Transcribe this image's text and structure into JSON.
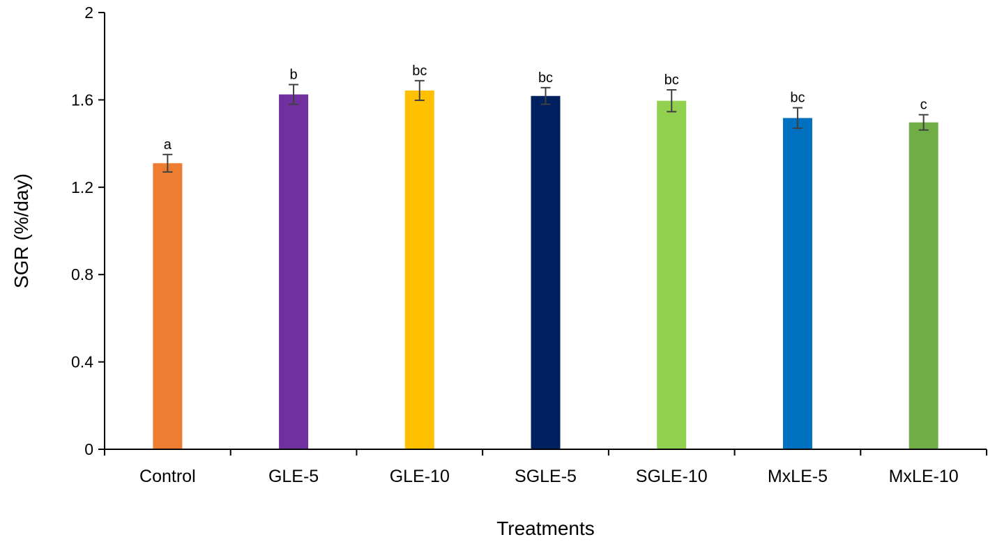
{
  "chart_data": {
    "type": "bar",
    "title": "",
    "xlabel": "Treatments",
    "ylabel": "SGR (%/day)",
    "ylim": [
      0,
      2
    ],
    "yticks": [
      "0",
      "0.4",
      "0.8",
      "1.2",
      "1.6",
      "2"
    ],
    "yticks_values": [
      0,
      0.4,
      0.8,
      1.2,
      1.6,
      2
    ],
    "categories": [
      "Control",
      "GLE-5",
      "GLE-10",
      "SGLE-5",
      "SGLE-10",
      "MxLE-5",
      "MxLE-10"
    ],
    "values": [
      1.31,
      1.625,
      1.643,
      1.618,
      1.596,
      1.517,
      1.497
    ],
    "errors": [
      0.04,
      0.045,
      0.045,
      0.038,
      0.05,
      0.047,
      0.035
    ],
    "significance": [
      "a",
      "b",
      "bc",
      "bc",
      "bc",
      "bc",
      "c"
    ],
    "colors": [
      "#ED7D31",
      "#7030A0",
      "#FFC000",
      "#002060",
      "#92D050",
      "#0070C0",
      "#70AD47"
    ],
    "grid": false,
    "legend": "none"
  }
}
